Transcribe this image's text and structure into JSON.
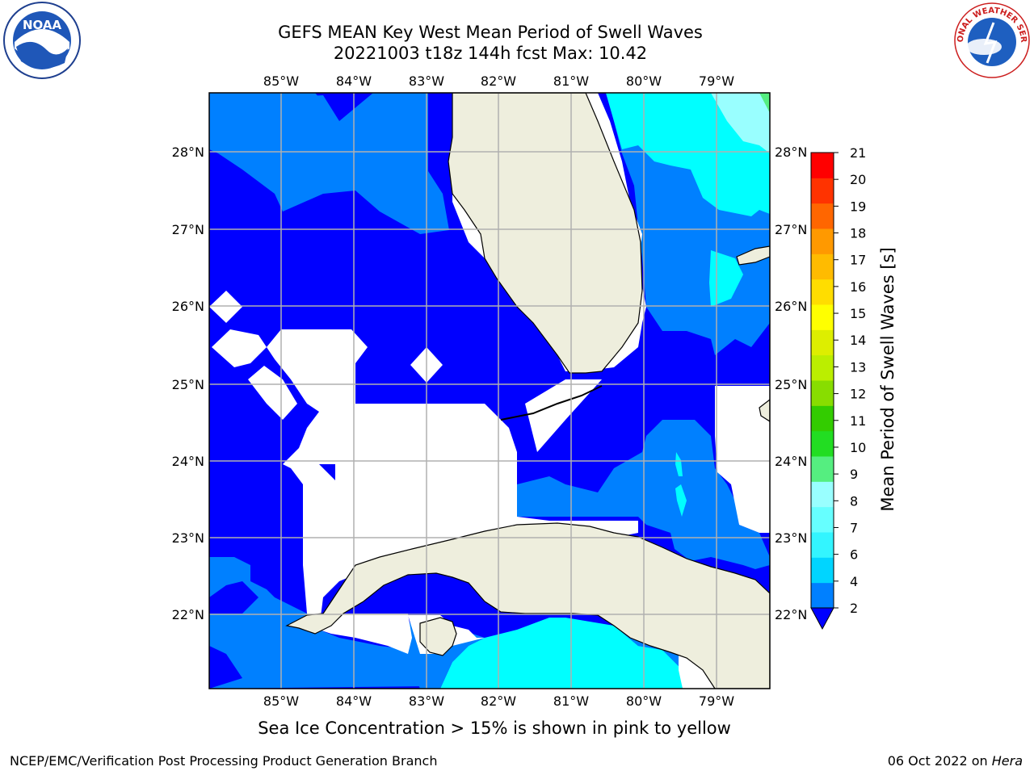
{
  "header": {
    "title_line1": "GEFS MEAN Key West Mean Period of Swell Waves",
    "title_line2": "20221003 t18z 144h fcst   Max: 10.42"
  },
  "logos": {
    "left": {
      "text": "NOAA",
      "icon": "noaa-logo-icon"
    },
    "right": {
      "text": "NATIONAL WEATHER SERVICE",
      "icon": "nws-logo-icon"
    }
  },
  "map": {
    "lon_labels": [
      "85°W",
      "84°W",
      "83°W",
      "82°W",
      "81°W",
      "80°W",
      "79°W"
    ],
    "lat_labels": [
      "28°N",
      "27°N",
      "26°N",
      "25°N",
      "24°N",
      "23°N",
      "22°N"
    ],
    "colors": {
      "ocean_dark": "#0000ff",
      "ocean_mid": "#0080ff",
      "ocean_light": "#00ffff",
      "land": "#eeeedd",
      "grid": "#b0b0b0",
      "coast": "#000000"
    }
  },
  "colorbar": {
    "label": "Mean Period of Swell Waves [s]",
    "ticks": [
      "2",
      "4",
      "6",
      "7",
      "8",
      "9",
      "10",
      "11",
      "12",
      "13",
      "14",
      "15",
      "16",
      "17",
      "18",
      "19",
      "20",
      "21"
    ],
    "colors": [
      "#0080ff",
      "#00d5ff",
      "#33f5ff",
      "#66ffff",
      "#99ffff",
      "#55ee80",
      "#22dd22",
      "#33cc00",
      "#88dd00",
      "#bbee00",
      "#ddee00",
      "#ffff00",
      "#ffdd00",
      "#ffbb00",
      "#ff9900",
      "#ff6600",
      "#ff3300",
      "#ff0000"
    ],
    "extend_color": "#0000ff"
  },
  "notes": {
    "sea_ice": "Sea Ice Concentration > 15% is shown in pink to yellow"
  },
  "footer": {
    "left": "NCEP/EMC/Verification Post Processing Product Generation Branch",
    "right_date": "06 Oct 2022 on",
    "right_host": "Hera"
  }
}
